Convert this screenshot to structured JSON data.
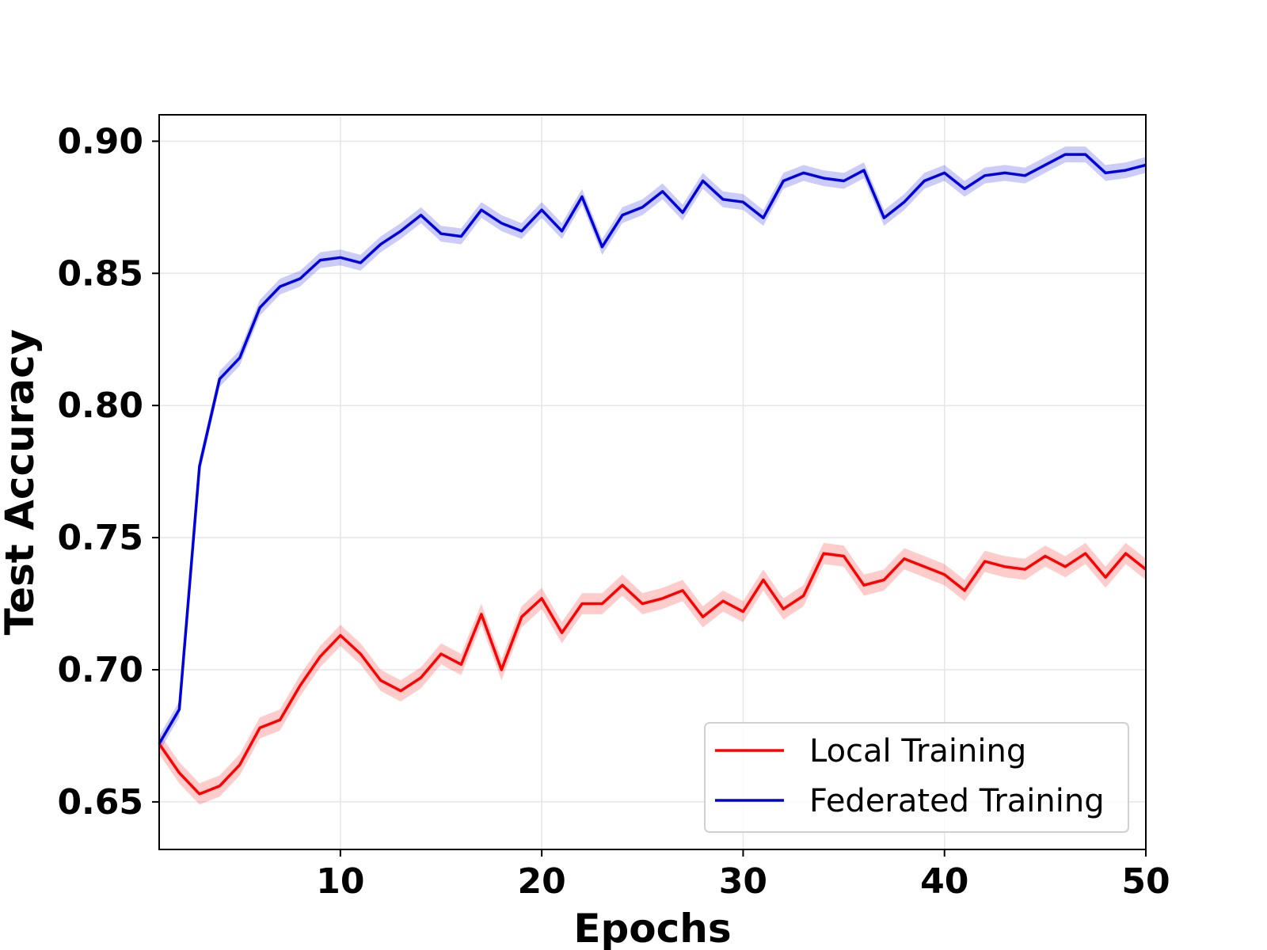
{
  "chart_data": {
    "type": "line",
    "xlabel": "Epochs",
    "ylabel": "Test Accuracy",
    "xlim": [
      1,
      50
    ],
    "ylim": [
      0.632,
      0.91
    ],
    "xticks": [
      10,
      20,
      30,
      40,
      50
    ],
    "yticks": [
      0.65,
      0.7,
      0.75,
      0.8,
      0.85,
      0.9
    ],
    "xtick_labels": [
      "10",
      "20",
      "30",
      "40",
      "50"
    ],
    "ytick_labels": [
      "0.65",
      "0.70",
      "0.75",
      "0.80",
      "0.85",
      "0.90"
    ],
    "grid": true,
    "legend_position": "lower-right",
    "x": [
      1,
      2,
      3,
      4,
      5,
      6,
      7,
      8,
      9,
      10,
      11,
      12,
      13,
      14,
      15,
      16,
      17,
      18,
      19,
      20,
      21,
      22,
      23,
      24,
      25,
      26,
      27,
      28,
      29,
      30,
      31,
      32,
      33,
      34,
      35,
      36,
      37,
      38,
      39,
      40,
      41,
      42,
      43,
      44,
      45,
      46,
      47,
      48,
      49,
      50
    ],
    "series": [
      {
        "name": "Local Training",
        "color": "#ff0000",
        "values": [
          0.672,
          0.661,
          0.653,
          0.656,
          0.664,
          0.678,
          0.681,
          0.694,
          0.705,
          0.713,
          0.706,
          0.696,
          0.692,
          0.697,
          0.706,
          0.702,
          0.721,
          0.7,
          0.72,
          0.727,
          0.714,
          0.725,
          0.725,
          0.732,
          0.725,
          0.727,
          0.73,
          0.72,
          0.726,
          0.722,
          0.734,
          0.723,
          0.728,
          0.744,
          0.743,
          0.732,
          0.734,
          0.742,
          0.739,
          0.736,
          0.73,
          0.741,
          0.739,
          0.738,
          0.743,
          0.739,
          0.744,
          0.735,
          0.744,
          0.738
        ],
        "band": 0.004
      },
      {
        "name": "Federated Training",
        "color": "#0000dd",
        "values": [
          0.672,
          0.685,
          0.777,
          0.81,
          0.818,
          0.837,
          0.845,
          0.848,
          0.855,
          0.856,
          0.854,
          0.861,
          0.866,
          0.872,
          0.865,
          0.864,
          0.874,
          0.869,
          0.866,
          0.874,
          0.866,
          0.879,
          0.86,
          0.872,
          0.875,
          0.881,
          0.873,
          0.885,
          0.878,
          0.877,
          0.871,
          0.885,
          0.888,
          0.886,
          0.885,
          0.889,
          0.871,
          0.877,
          0.885,
          0.888,
          0.882,
          0.887,
          0.888,
          0.887,
          0.891,
          0.895,
          0.895,
          0.888,
          0.889,
          0.891
        ],
        "band": 0.003
      }
    ]
  }
}
